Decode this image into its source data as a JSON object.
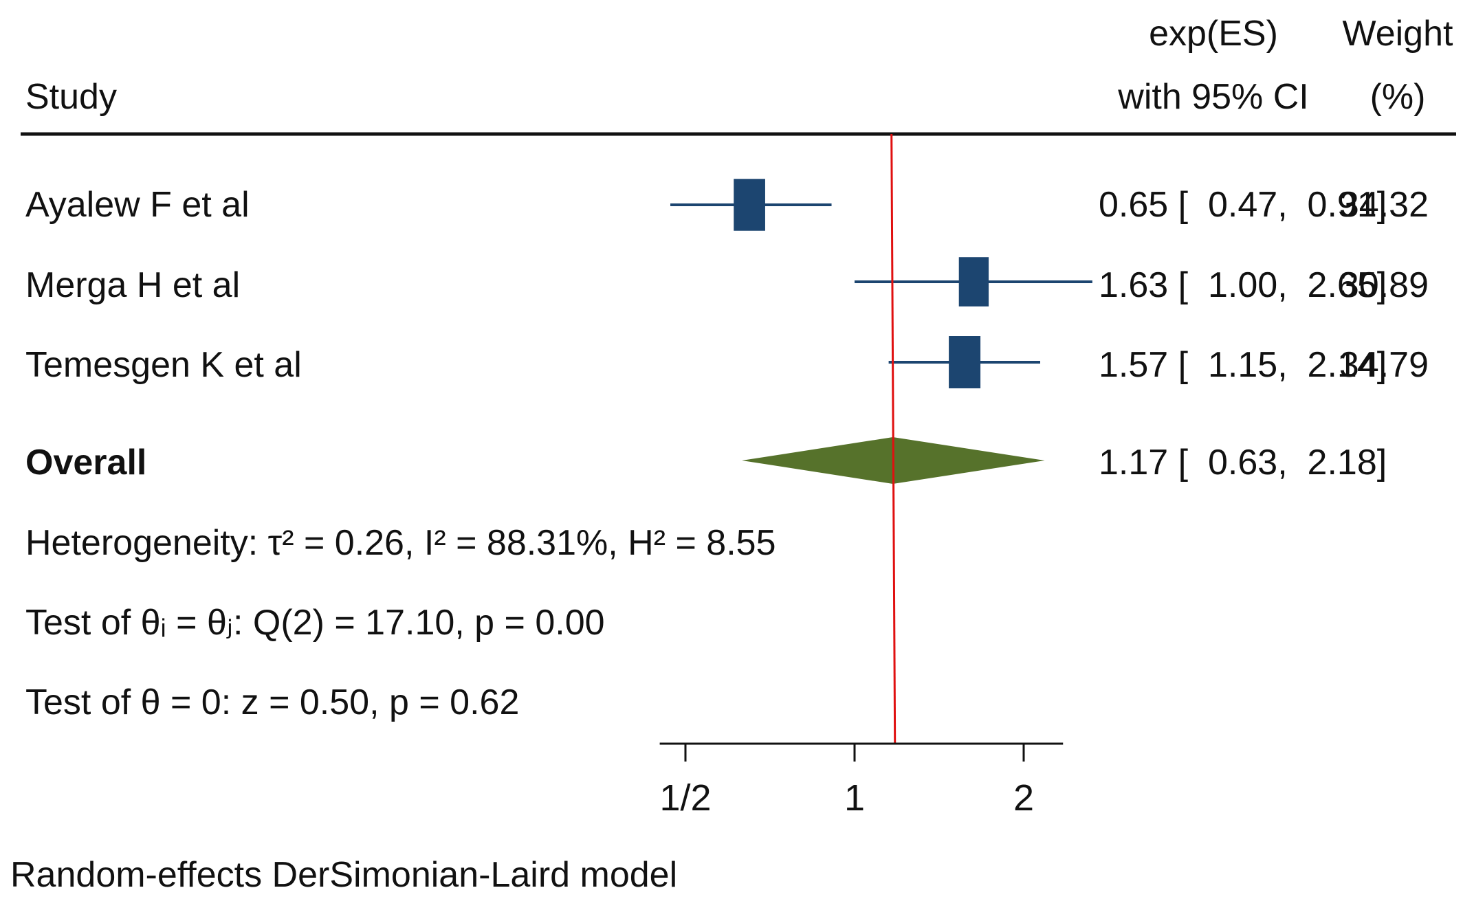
{
  "header": {
    "study": "Study",
    "es_line1": "exp(ES)",
    "es_line2": "with 95% CI",
    "weight_line1": "Weight",
    "weight_line2": "(%)"
  },
  "chart_data": {
    "type": "forest",
    "scale": "log",
    "xlim": [
      0.45,
      2.35
    ],
    "xticks": [
      {
        "value": 0.5,
        "label": "1/2"
      },
      {
        "value": 1,
        "label": "1"
      },
      {
        "value": 2,
        "label": "2"
      }
    ],
    "reference_line": 1.17,
    "studies": [
      {
        "name": "Ayalew F et al",
        "es": 0.65,
        "lo": 0.47,
        "hi": 0.91,
        "weight": 34.32,
        "ci_text": "0.65 [  0.47,  0.91]",
        "weight_text": "34.32"
      },
      {
        "name": "Merga H et al",
        "es": 1.63,
        "lo": 1.0,
        "hi": 2.65,
        "weight": 30.89,
        "ci_text": "1.63 [  1.00,  2.65]",
        "weight_text": "30.89"
      },
      {
        "name": "Temesgen K et al",
        "es": 1.57,
        "lo": 1.15,
        "hi": 2.14,
        "weight": 34.79,
        "ci_text": "1.57 [  1.15,  2.14]",
        "weight_text": "34.79"
      }
    ],
    "overall": {
      "name": "Overall",
      "es": 1.17,
      "lo": 0.63,
      "hi": 2.18,
      "ci_text": "1.17 [  0.63,  2.18]"
    },
    "stats": {
      "heterogeneity": "Heterogeneity: τ² = 0.26, I² = 88.31%, H² = 8.55",
      "test_equal": "Test of θᵢ = θⱼ: Q(2) = 17.10, p = 0.00",
      "test_zero": "Test of θ = 0: z = 0.50, p = 0.62"
    },
    "footnote": "Random-effects DerSimonian-Laird model",
    "colors": {
      "study_marker": "#1c4570",
      "overall_diamond": "#56722b",
      "reference_line": "#e01010",
      "text": "#111111"
    }
  }
}
